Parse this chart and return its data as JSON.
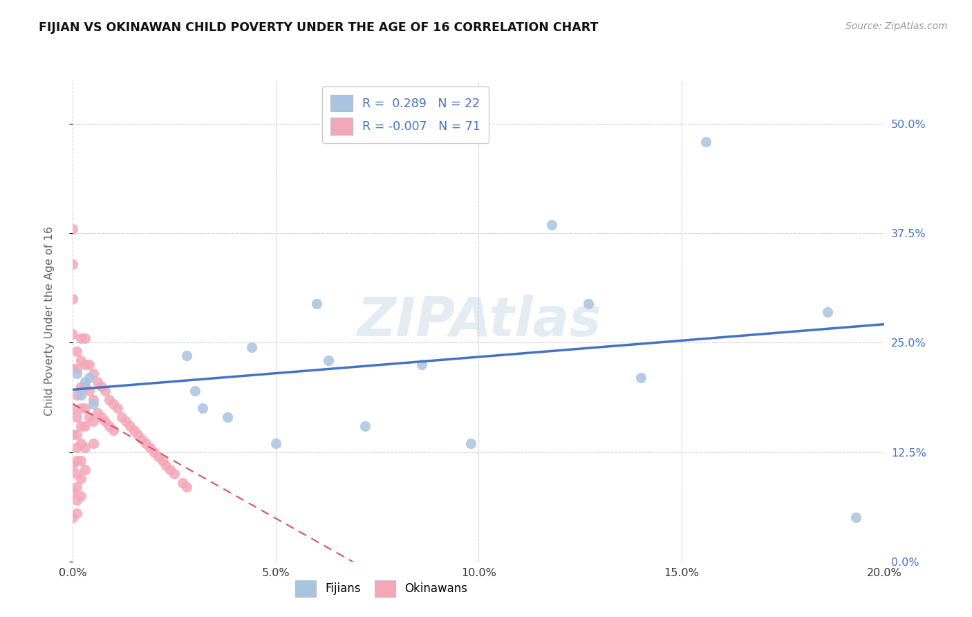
{
  "title": "FIJIAN VS OKINAWAN CHILD POVERTY UNDER THE AGE OF 16 CORRELATION CHART",
  "source": "Source: ZipAtlas.com",
  "ylabel_label": "Child Poverty Under the Age of 16",
  "fijian_color": "#a8c4e0",
  "okinawan_color": "#f4a7b9",
  "fijian_line_color": "#4472c4",
  "okinawan_line_color": "#d9506a",
  "watermark": "ZIPAtlas",
  "legend_fijian": "R =  0.289   N = 22",
  "legend_okinawan": "R = -0.007   N = 71",
  "fijian_label": "Fijians",
  "okinawan_label": "Okinawans",
  "xlim": [
    0.0,
    0.2
  ],
  "ylim": [
    0.0,
    0.55
  ],
  "xlabel_vals": [
    0.0,
    0.05,
    0.1,
    0.15,
    0.2
  ],
  "xlabel_ticks": [
    "0.0%",
    "5.0%",
    "10.0%",
    "15.0%",
    "20.0%"
  ],
  "ylabel_vals": [
    0.0,
    0.125,
    0.25,
    0.375,
    0.5
  ],
  "ylabel_ticks": [
    "0.0%",
    "12.5%",
    "25.0%",
    "37.5%",
    "50.0%"
  ],
  "fijian_x": [
    0.001,
    0.002,
    0.003,
    0.004,
    0.005,
    0.028,
    0.03,
    0.032,
    0.038,
    0.044,
    0.05,
    0.06,
    0.063,
    0.072,
    0.086,
    0.098,
    0.118,
    0.127,
    0.14,
    0.156,
    0.186,
    0.193
  ],
  "fijian_y": [
    0.215,
    0.19,
    0.205,
    0.21,
    0.18,
    0.235,
    0.195,
    0.175,
    0.165,
    0.245,
    0.135,
    0.295,
    0.23,
    0.155,
    0.225,
    0.135,
    0.385,
    0.295,
    0.21,
    0.48,
    0.285,
    0.05
  ],
  "okinawan_x": [
    0.0,
    0.0,
    0.0,
    0.0,
    0.0,
    0.0,
    0.0,
    0.0,
    0.0,
    0.0,
    0.001,
    0.001,
    0.001,
    0.001,
    0.001,
    0.001,
    0.001,
    0.001,
    0.001,
    0.001,
    0.001,
    0.002,
    0.002,
    0.002,
    0.002,
    0.002,
    0.002,
    0.002,
    0.002,
    0.002,
    0.003,
    0.003,
    0.003,
    0.003,
    0.003,
    0.003,
    0.003,
    0.004,
    0.004,
    0.004,
    0.005,
    0.005,
    0.005,
    0.005,
    0.006,
    0.006,
    0.007,
    0.007,
    0.008,
    0.008,
    0.009,
    0.009,
    0.01,
    0.01,
    0.011,
    0.012,
    0.013,
    0.014,
    0.015,
    0.016,
    0.017,
    0.018,
    0.019,
    0.02,
    0.021,
    0.022,
    0.023,
    0.024,
    0.025,
    0.027,
    0.028
  ],
  "okinawan_y": [
    0.38,
    0.34,
    0.3,
    0.26,
    0.22,
    0.175,
    0.145,
    0.11,
    0.08,
    0.05,
    0.24,
    0.22,
    0.19,
    0.165,
    0.145,
    0.13,
    0.115,
    0.1,
    0.085,
    0.07,
    0.055,
    0.255,
    0.23,
    0.2,
    0.175,
    0.155,
    0.135,
    0.115,
    0.095,
    0.075,
    0.255,
    0.225,
    0.2,
    0.175,
    0.155,
    0.13,
    0.105,
    0.225,
    0.195,
    0.165,
    0.215,
    0.185,
    0.16,
    0.135,
    0.205,
    0.17,
    0.2,
    0.165,
    0.195,
    0.16,
    0.185,
    0.155,
    0.18,
    0.15,
    0.175,
    0.165,
    0.16,
    0.155,
    0.15,
    0.145,
    0.14,
    0.135,
    0.13,
    0.125,
    0.12,
    0.115,
    0.11,
    0.105,
    0.1,
    0.09,
    0.085
  ],
  "background_color": "#ffffff",
  "grid_color": "#cccccc"
}
